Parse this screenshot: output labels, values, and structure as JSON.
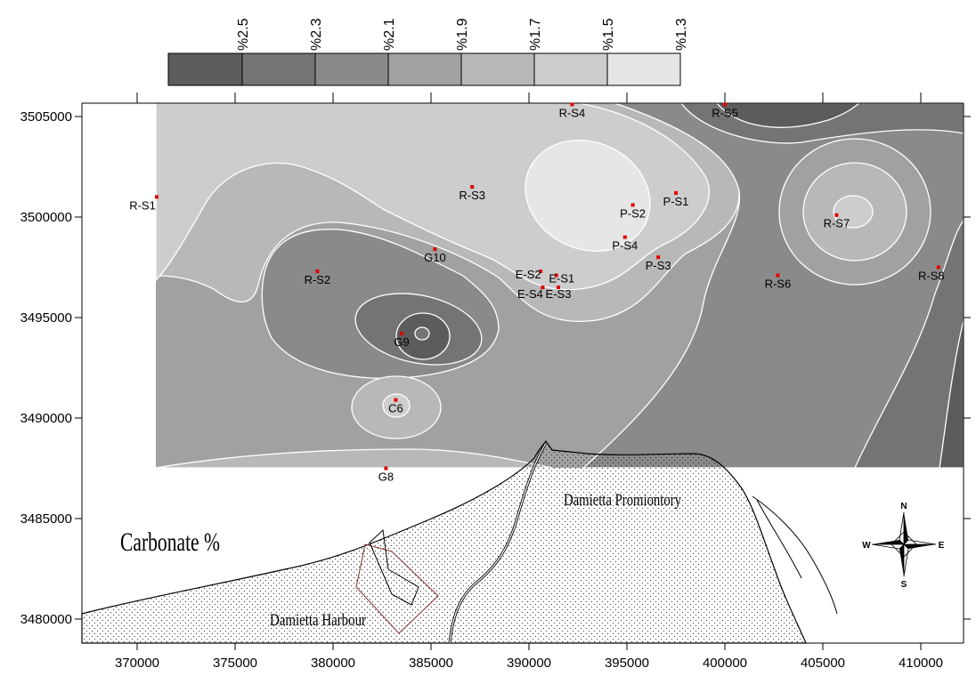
{
  "title": "Carbonate %",
  "places": {
    "promontory": "Damietta Promiontory",
    "harbour": "Damietta Harbour"
  },
  "compass": {
    "n": "N",
    "s": "S",
    "e": "E",
    "w": "W"
  },
  "legend": {
    "labels": [
      "%2.5",
      "%2.3",
      "%2.1",
      "%1.9",
      "%1.7",
      "%1.5",
      "%1.3"
    ],
    "colors": [
      "#5c5c5c",
      "#747474",
      "#8a8a8a",
      "#a1a1a1",
      "#b8b8b8",
      "#cdcdcd",
      "#e6e6e6"
    ]
  },
  "axes": {
    "x_ticks": [
      "370000",
      "375000",
      "380000",
      "385000",
      "390000",
      "395000",
      "400000",
      "405000",
      "410000"
    ],
    "y_ticks": [
      "3505000",
      "3500000",
      "3495000",
      "3490000",
      "3485000",
      "3480000"
    ]
  },
  "stations": [
    {
      "name": "R-S1",
      "x": 371000,
      "y": 3501000
    },
    {
      "name": "R-S2",
      "x": 379200,
      "y": 3497300
    },
    {
      "name": "R-S3",
      "x": 387100,
      "y": 3501500
    },
    {
      "name": "R-S4",
      "x": 392200,
      "y": 3505600
    },
    {
      "name": "R-S5",
      "x": 400000,
      "y": 3505600
    },
    {
      "name": "R-S6",
      "x": 402700,
      "y": 3497100
    },
    {
      "name": "R-S7",
      "x": 405700,
      "y": 3500100
    },
    {
      "name": "R-S8",
      "x": 410900,
      "y": 3497500
    },
    {
      "name": "P-S1",
      "x": 397500,
      "y": 3501200
    },
    {
      "name": "P-S2",
      "x": 395300,
      "y": 3500600
    },
    {
      "name": "P-S3",
      "x": 396600,
      "y": 3498000
    },
    {
      "name": "P-S4",
      "x": 394900,
      "y": 3499000
    },
    {
      "name": "E-S1",
      "x": 391400,
      "y": 3497100
    },
    {
      "name": "E-S2",
      "x": 390600,
      "y": 3497300
    },
    {
      "name": "E-S3",
      "x": 391500,
      "y": 3496500
    },
    {
      "name": "E-S4",
      "x": 390700,
      "y": 3496500
    },
    {
      "name": "G10",
      "x": 385200,
      "y": 3498400
    },
    {
      "name": "G9",
      "x": 383500,
      "y": 3494200
    },
    {
      "name": "C6",
      "x": 383200,
      "y": 3490900
    },
    {
      "name": "G8",
      "x": 382700,
      "y": 3487500
    }
  ]
}
